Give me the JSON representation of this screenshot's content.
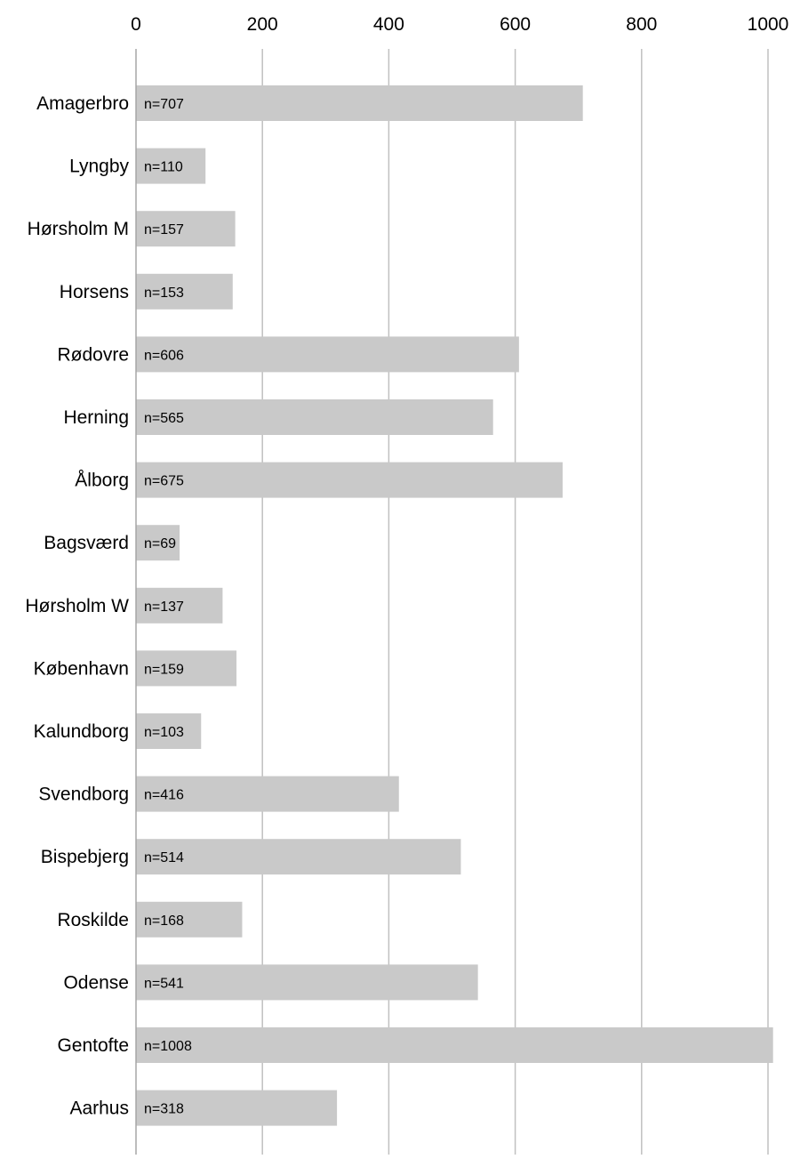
{
  "chart_data": {
    "type": "bar",
    "orientation": "horizontal",
    "title": "",
    "xlabel": "",
    "ylabel": "",
    "xlim": [
      0,
      1000
    ],
    "xticks": [
      0,
      200,
      400,
      600,
      800,
      1000
    ],
    "x_axis_position": "top",
    "grid": "vertical",
    "categories": [
      "Amagerbro",
      "Lyngby",
      "Hørsholm M",
      "Horsens",
      "Rødovre",
      "Herning",
      "Ålborg",
      "Bagsværd",
      "Hørsholm W",
      "København",
      "Kalundborg",
      "Svendborg",
      "Bispebjerg",
      "Roskilde",
      "Odense",
      "Gentofte",
      "Aarhus"
    ],
    "values": [
      707,
      110,
      157,
      153,
      606,
      565,
      675,
      69,
      137,
      159,
      103,
      416,
      514,
      168,
      541,
      1008,
      318
    ],
    "data_labels": [
      "n=707",
      "n=110",
      "n=157",
      "n=153",
      "n=606",
      "n=565",
      "n=675",
      "n=69",
      "n=137",
      "n=159",
      "n=103",
      "n=416",
      "n=514",
      "n=168",
      "n=541",
      "n=1008",
      "n=318"
    ],
    "colors": {
      "bar": "#c9c9c9",
      "grid": "#c0c0c0",
      "axis": "#a6a6a6",
      "text": "#000000"
    }
  }
}
